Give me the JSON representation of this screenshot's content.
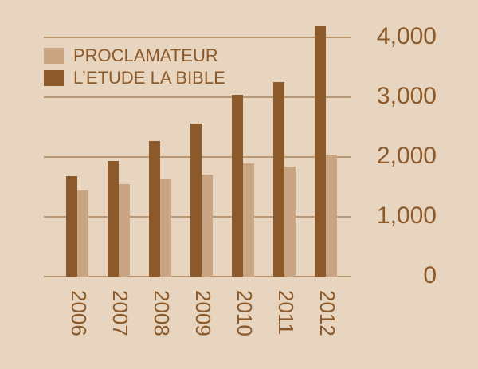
{
  "chart_data": {
    "type": "bar",
    "categories": [
      "2006",
      "2007",
      "2008",
      "2009",
      "2010",
      "2011",
      "2012"
    ],
    "series": [
      {
        "name": "PROCLAMATEUR",
        "color": "#c9a583",
        "values": [
          1440,
          1547,
          1640,
          1707,
          1893,
          1840,
          2040
        ]
      },
      {
        "name": "L’ETUDE LA BIBLE",
        "color": "#8c5a2a",
        "values": [
          1680,
          1933,
          2267,
          2560,
          3040,
          3253,
          4200
        ]
      }
    ],
    "ylim": [
      0,
      4000
    ],
    "yticks": [
      0,
      {
        "value": 1000,
        "label": "1,000"
      },
      {
        "value": 2000,
        "label": "2,000"
      },
      {
        "value": 3000,
        "label": "3,000"
      },
      {
        "value": 4000,
        "label": "4,000"
      }
    ],
    "grid": true,
    "legend": "top-left"
  }
}
